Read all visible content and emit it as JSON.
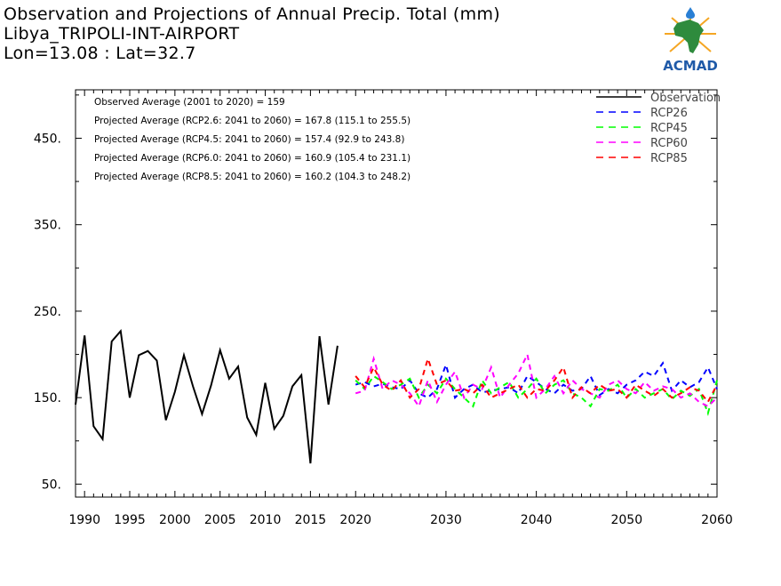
{
  "header": {
    "line1": "Observation and Projections of Annual Precip. Total (mm)",
    "line2": "Libya_TRIPOLI-INT-AIRPORT",
    "line3": "Lon=13.08 : Lat=32.7"
  },
  "logo": {
    "text": "ACMAD",
    "icon": "africa-map-sun-drop-icon"
  },
  "chart_data": {
    "type": "line",
    "xlim": [
      1989,
      2060
    ],
    "ylim": [
      35,
      506
    ],
    "x_ticks_major": [
      1990,
      1995,
      2000,
      2005,
      2010,
      2015,
      2020,
      2030,
      2040,
      2050,
      2060
    ],
    "y_ticks_labeled": [
      50,
      150,
      250,
      350,
      450
    ],
    "y_tick_labels": [
      "50.",
      "150.",
      "250.",
      "350.",
      "450."
    ],
    "annotations": [
      "Observed Average (2001 to 2020) = 159",
      "Projected Average (RCP2.6: 2041 to 2060) = 167.8 (115.1 to 255.5)",
      "Projected Average (RCP4.5: 2041 to 2060) = 157.4 (92.9 to 243.8)",
      "Projected Average (RCP6.0: 2041 to 2060) = 160.9 (105.4 to 231.1)",
      "Projected Average (RCP8.5: 2041 to 2060) = 160.2 (104.3 to 248.2)"
    ],
    "legend_position": "top-right",
    "series": [
      {
        "name": "Observation",
        "color": "#000000",
        "dash": false,
        "x": [
          1989,
          1990,
          1991,
          1992,
          1993,
          1994,
          1995,
          1996,
          1997,
          1998,
          1999,
          2000,
          2001,
          2002,
          2003,
          2004,
          2005,
          2006,
          2007,
          2008,
          2009,
          2010,
          2011,
          2012,
          2013,
          2014,
          2015,
          2016,
          2017,
          2018,
          2019,
          2020
        ],
        "values": [
          142,
          222,
          117,
          102,
          215,
          227,
          150,
          199,
          204,
          193,
          124,
          157,
          199,
          163,
          131,
          164,
          205,
          172,
          186,
          127,
          107,
          167,
          114,
          129,
          163,
          176,
          74,
          221,
          142,
          210,
          null,
          null
        ]
      },
      {
        "name": "RCP26",
        "color": "#0000ff",
        "dash": true,
        "x": [
          2020,
          2021,
          2022,
          2023,
          2024,
          2025,
          2026,
          2027,
          2028,
          2029,
          2030,
          2031,
          2032,
          2033,
          2034,
          2035,
          2036,
          2037,
          2038,
          2039,
          2040,
          2041,
          2042,
          2043,
          2044,
          2045,
          2046,
          2047,
          2048,
          2049,
          2050,
          2051,
          2052,
          2053,
          2054,
          2055,
          2056,
          2057,
          2058,
          2059,
          2060
        ],
        "values": [
          165,
          168,
          163,
          166,
          162,
          160,
          170,
          155,
          150,
          160,
          188,
          150,
          160,
          165,
          156,
          158,
          160,
          162,
          155,
          175,
          168,
          160,
          155,
          165,
          158,
          160,
          175,
          153,
          160,
          155,
          165,
          170,
          180,
          175,
          190,
          158,
          170,
          162,
          168,
          185,
          160
        ]
      },
      {
        "name": "RCP45",
        "color": "#00ff00",
        "dash": true,
        "x": [
          2020,
          2021,
          2022,
          2023,
          2024,
          2025,
          2026,
          2027,
          2028,
          2029,
          2030,
          2031,
          2032,
          2033,
          2034,
          2035,
          2036,
          2037,
          2038,
          2039,
          2040,
          2041,
          2042,
          2043,
          2044,
          2045,
          2046,
          2047,
          2048,
          2049,
          2050,
          2051,
          2052,
          2053,
          2054,
          2055,
          2056,
          2057,
          2058,
          2059,
          2060
        ],
        "values": [
          170,
          160,
          175,
          168,
          160,
          165,
          172,
          150,
          165,
          155,
          172,
          160,
          150,
          140,
          170,
          155,
          162,
          168,
          150,
          160,
          172,
          155,
          165,
          170,
          155,
          150,
          140,
          160,
          158,
          165,
          150,
          160,
          150,
          155,
          160,
          148,
          158,
          152,
          160,
          132,
          170
        ]
      },
      {
        "name": "RCP60",
        "color": "#ff00ff",
        "dash": true,
        "x": [
          2020,
          2021,
          2022,
          2023,
          2024,
          2025,
          2026,
          2027,
          2028,
          2029,
          2030,
          2031,
          2032,
          2033,
          2034,
          2035,
          2036,
          2037,
          2038,
          2039,
          2040,
          2041,
          2042,
          2043,
          2044,
          2045,
          2046,
          2047,
          2048,
          2049,
          2050,
          2051,
          2052,
          2053,
          2054,
          2055,
          2056,
          2057,
          2058,
          2059,
          2060
        ],
        "values": [
          155,
          158,
          195,
          160,
          170,
          165,
          155,
          140,
          170,
          145,
          165,
          180,
          150,
          165,
          160,
          185,
          150,
          165,
          178,
          200,
          150,
          160,
          175,
          155,
          170,
          160,
          155,
          150,
          165,
          170,
          160,
          155,
          168,
          158,
          163,
          160,
          150,
          155,
          145,
          140,
          150
        ]
      },
      {
        "name": "RCP85",
        "color": "#ff0000",
        "dash": true,
        "x": [
          2020,
          2021,
          2022,
          2023,
          2024,
          2025,
          2026,
          2027,
          2028,
          2029,
          2030,
          2031,
          2032,
          2033,
          2034,
          2035,
          2036,
          2037,
          2038,
          2039,
          2040,
          2041,
          2042,
          2043,
          2044,
          2045,
          2046,
          2047,
          2048,
          2049,
          2050,
          2051,
          2052,
          2053,
          2054,
          2055,
          2056,
          2057,
          2058,
          2059,
          2060
        ],
        "values": [
          175,
          162,
          185,
          165,
          158,
          170,
          150,
          160,
          195,
          165,
          170,
          158,
          160,
          155,
          165,
          150,
          155,
          160,
          165,
          150,
          160,
          158,
          170,
          185,
          150,
          162,
          155,
          165,
          158,
          160,
          150,
          165,
          158,
          152,
          160,
          150,
          155,
          162,
          158,
          145,
          165
        ]
      }
    ]
  }
}
